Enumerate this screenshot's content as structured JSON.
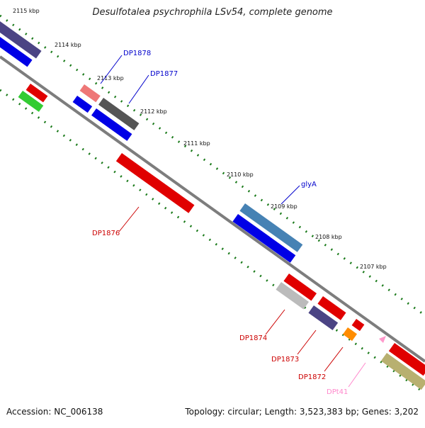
{
  "title": "Desulfotalea psychrophila LSv54, complete genome",
  "footer": {
    "accession": "Accession: NC_006138",
    "summary": "Topology: circular; Length: 3,523,383 bp; Genes: 3,202"
  },
  "ticks": [
    "2115 kbp",
    "2114 kbp",
    "2113 kbp",
    "2112 kbp",
    "2111 kbp",
    "2110 kbp",
    "2109 kbp",
    "2108 kbp",
    "2107 kbp"
  ],
  "gene_labels": [
    "DP1878",
    "DP1877",
    "glyA",
    "DP1876",
    "DP1874",
    "DP1873",
    "DP1872",
    "DPt41"
  ],
  "colors": {
    "label_blue": "#0000cc",
    "label_red": "#cc0000",
    "label_pink": "#ff88cc",
    "tick_green": "#006600",
    "backbone": "#808080"
  }
}
